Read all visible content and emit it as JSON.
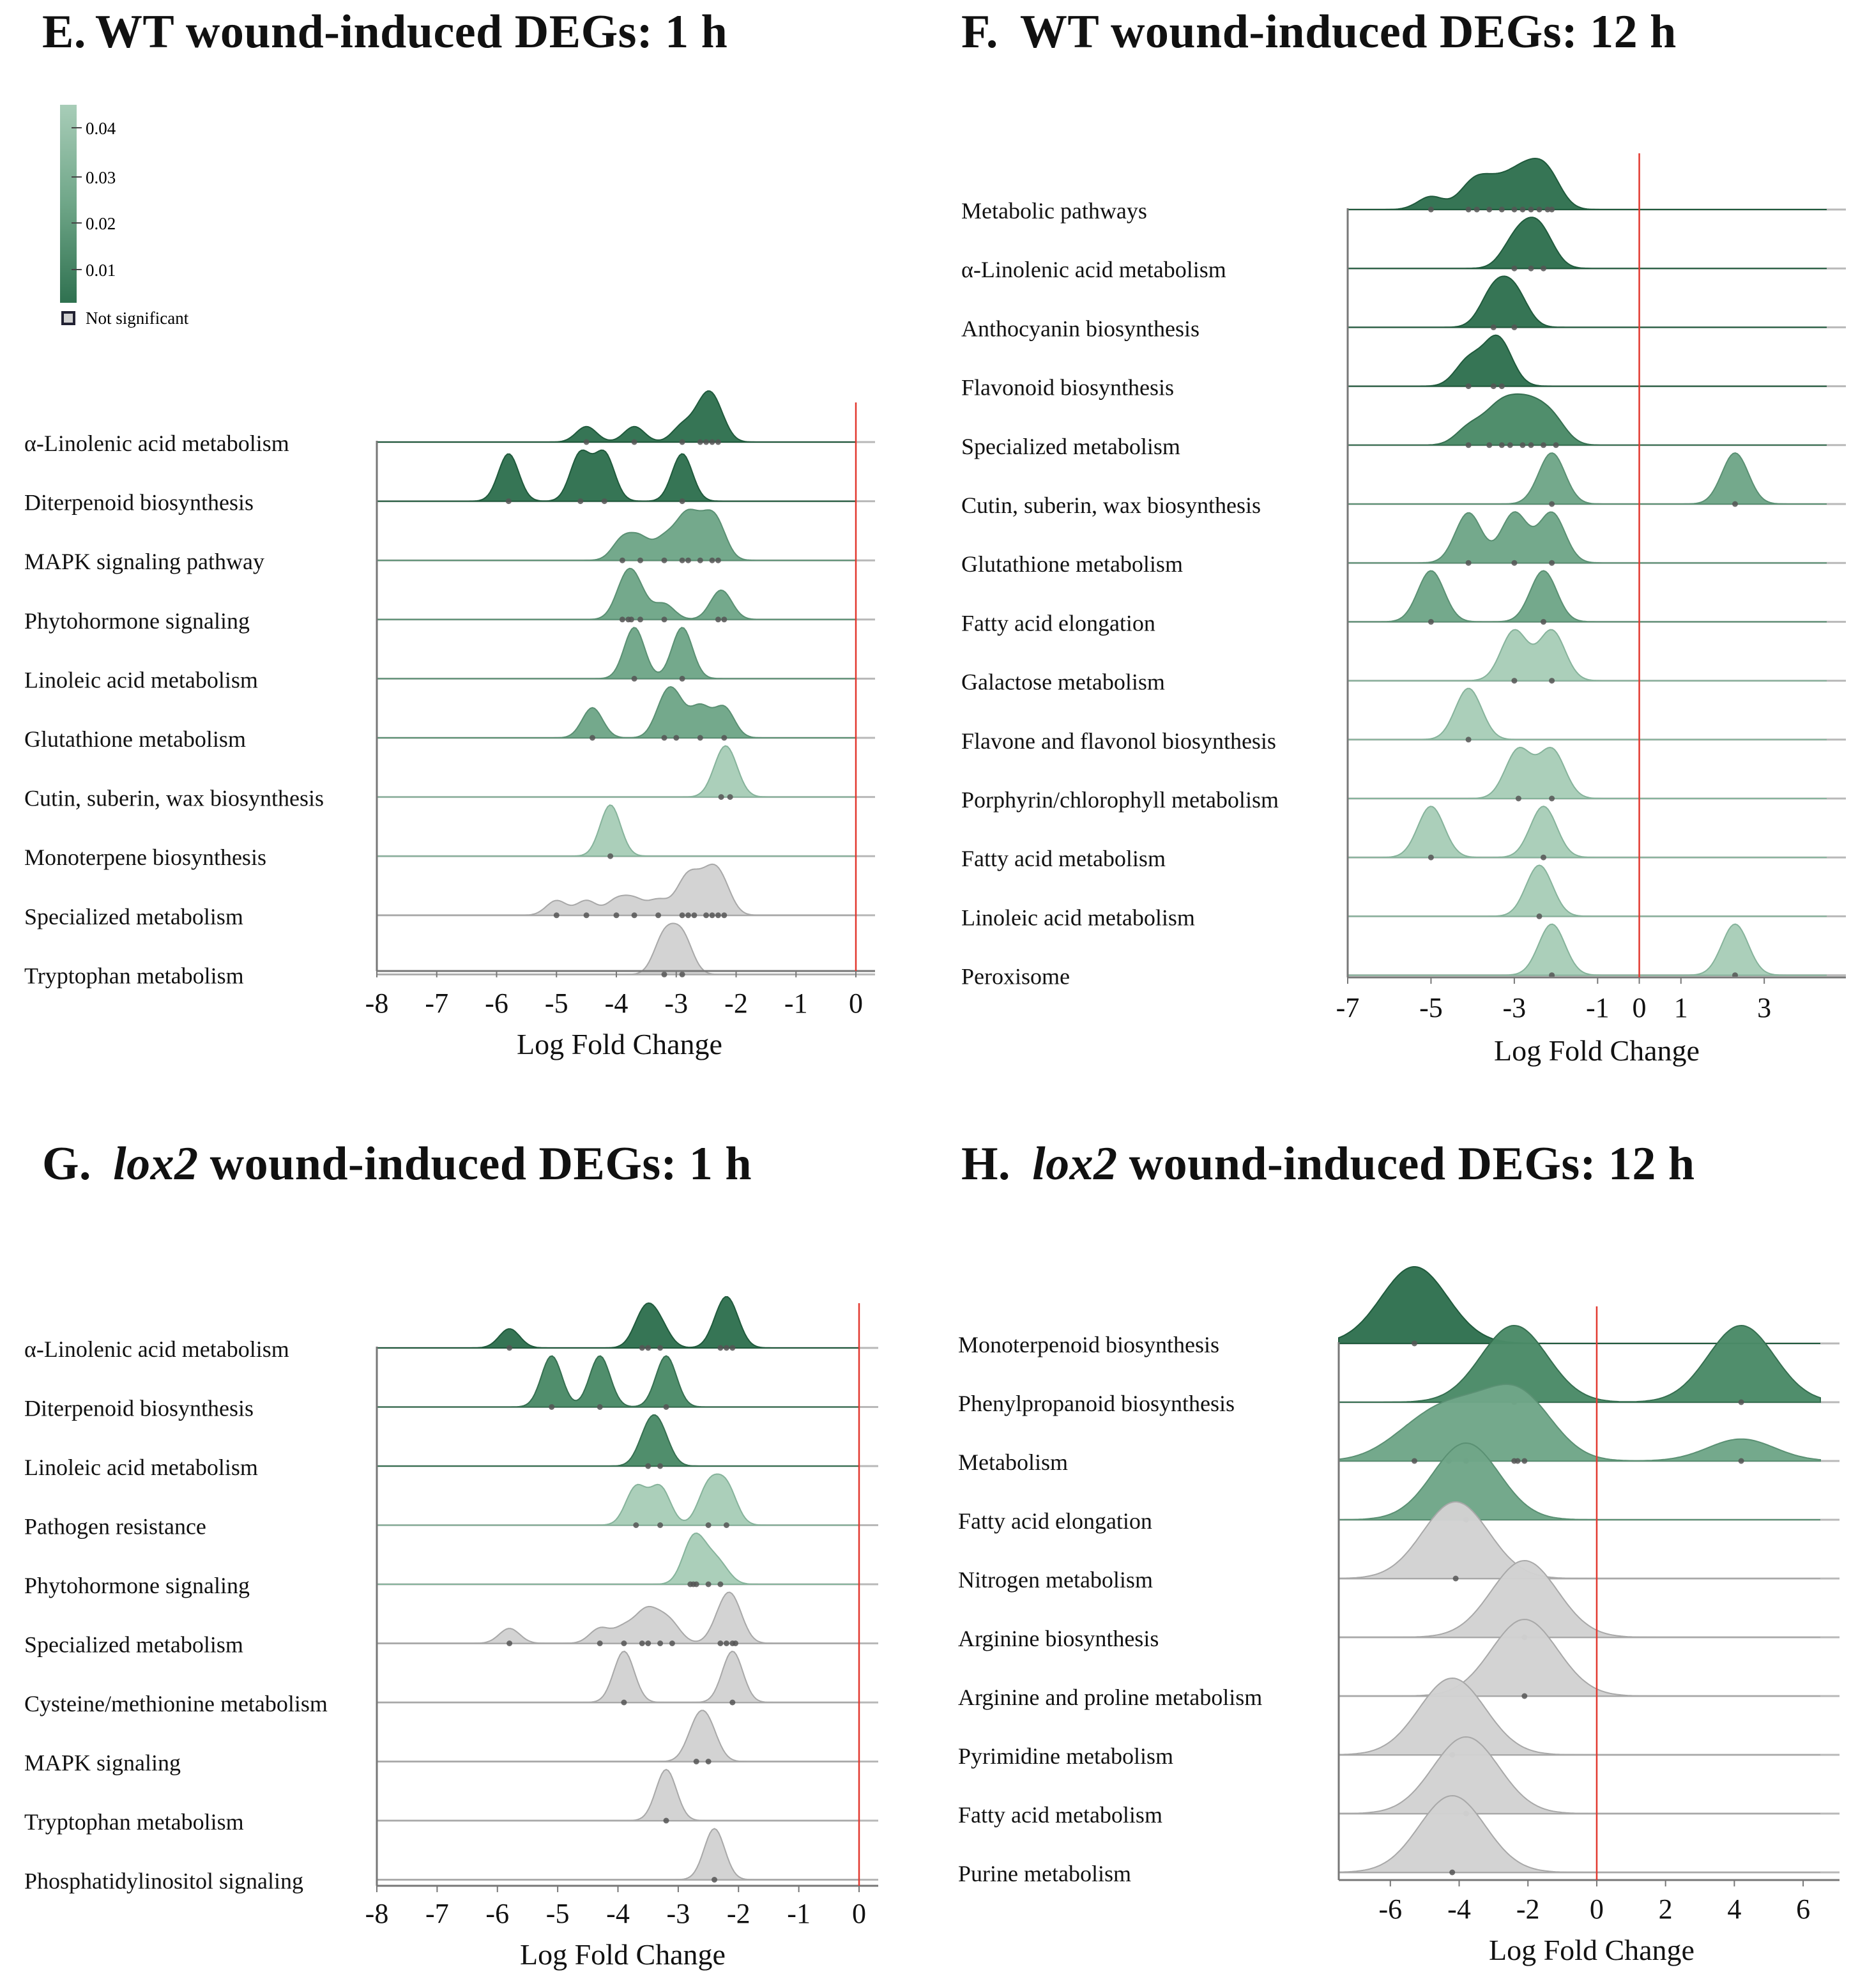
{
  "colors": {
    "q001": "#2f7150",
    "q002": "#4a8a67",
    "q003": "#6fa688",
    "q004": "#a8cdb8",
    "ns": "#d2d2d2",
    "axis": "#9a9a9a",
    "zero_line": "#e2382f",
    "dot": "#555555"
  },
  "legend": {
    "ticks": [
      "0.04",
      "0.03",
      "0.02",
      "0.01"
    ],
    "ns_label": "Not significant"
  },
  "chart_data": [
    {
      "panel": "E",
      "type": "ridgeline",
      "label": "E.",
      "title_italic": "",
      "title_rest": "WT wound-induced DEGs: 1 h",
      "xlabel": "Log Fold Change",
      "xlim": [
        -8,
        0
      ],
      "xticks": [
        -8,
        -7,
        -6,
        -5,
        -4,
        -3,
        -2,
        -1,
        0
      ],
      "xtick_labels": [
        "-8",
        "-7",
        "-6",
        "-5",
        "-4",
        "-3",
        "-2",
        "-1",
        "0"
      ],
      "zero_line": 0,
      "series": [
        {
          "name": "α-Linolenic acid metabolism",
          "color": "q001",
          "points": [
            -4.5,
            -3.7,
            -2.9,
            -2.6,
            -2.5,
            -2.4,
            -2.3
          ]
        },
        {
          "name": "Diterpenoid biosynthesis",
          "color": "q001",
          "points": [
            -5.8,
            -4.6,
            -4.2,
            -2.9
          ]
        },
        {
          "name": "MAPK signaling pathway",
          "color": "q003",
          "points": [
            -3.9,
            -3.6,
            -3.2,
            -2.9,
            -2.8,
            -2.6,
            -2.4,
            -2.3
          ]
        },
        {
          "name": "Phytohormone signaling",
          "color": "q003",
          "points": [
            -3.9,
            -3.8,
            -3.75,
            -3.6,
            -3.2,
            -2.3,
            -2.2
          ]
        },
        {
          "name": "Linoleic acid metabolism",
          "color": "q003",
          "points": [
            -3.7,
            -2.9
          ]
        },
        {
          "name": "Glutathione metabolism",
          "color": "q003",
          "points": [
            -4.4,
            -3.2,
            -3.0,
            -2.6,
            -2.2
          ]
        },
        {
          "name": "Cutin, suberin, wax biosynthesis",
          "color": "q004",
          "points": [
            -2.25,
            -2.1
          ]
        },
        {
          "name": "Monoterpene biosynthesis",
          "color": "q004",
          "points": [
            -4.1
          ]
        },
        {
          "name": "Specialized metabolism",
          "color": "ns",
          "points": [
            -5.0,
            -4.5,
            -4.0,
            -3.7,
            -3.3,
            -2.9,
            -2.8,
            -2.7,
            -2.5,
            -2.4,
            -2.3,
            -2.2
          ]
        },
        {
          "name": "Tryptophan metabolism",
          "color": "ns",
          "points": [
            -3.2,
            -2.9
          ]
        }
      ]
    },
    {
      "panel": "F",
      "type": "ridgeline",
      "label": "F.",
      "title_italic": "",
      "title_rest": "WT wound-induced DEGs: 12 h",
      "xlabel": "Log Fold Change",
      "xlim": [
        -7,
        4.5
      ],
      "xticks": [
        -7,
        -5,
        -3,
        -1,
        0,
        1,
        3
      ],
      "xtick_labels": [
        "-7",
        "-5",
        "-3",
        "-1",
        "0",
        "1",
        "3"
      ],
      "zero_line": 0,
      "series": [
        {
          "name": "Metabolic pathways",
          "color": "q001",
          "points": [
            -5.0,
            -4.1,
            -3.9,
            -3.6,
            -3.3,
            -3.0,
            -2.8,
            -2.6,
            -2.4,
            -2.2,
            -2.1
          ]
        },
        {
          "name": "α-Linolenic acid metabolism",
          "color": "q001",
          "points": [
            -3.0,
            -2.6,
            -2.3
          ]
        },
        {
          "name": "Anthocyanin biosynthesis",
          "color": "q001",
          "points": [
            -3.5,
            -3.0
          ]
        },
        {
          "name": "Flavonoid biosynthesis",
          "color": "q001",
          "points": [
            -4.1,
            -3.5,
            -3.3
          ]
        },
        {
          "name": "Specialized metabolism",
          "color": "q002",
          "points": [
            -4.1,
            -3.6,
            -3.3,
            -3.1,
            -2.8,
            -2.6,
            -2.3,
            -2.0
          ]
        },
        {
          "name": "Cutin, suberin, wax biosynthesis",
          "color": "q003",
          "points": [
            -2.1,
            2.3
          ]
        },
        {
          "name": "Glutathione metabolism",
          "color": "q003",
          "points": [
            -4.1,
            -3.0,
            -2.1
          ]
        },
        {
          "name": "Fatty acid elongation",
          "color": "q003",
          "points": [
            -5.0,
            -2.3
          ]
        },
        {
          "name": "Galactose metabolism",
          "color": "q004",
          "points": [
            -3.0,
            -2.1
          ]
        },
        {
          "name": "Flavone and flavonol biosynthesis",
          "color": "q004",
          "points": [
            -4.1
          ]
        },
        {
          "name": "Porphyrin/chlorophyll metabolism",
          "color": "q004",
          "points": [
            -2.9,
            -2.1
          ]
        },
        {
          "name": "Fatty acid metabolism",
          "color": "q004",
          "points": [
            -5.0,
            -2.3
          ]
        },
        {
          "name": "Linoleic acid metabolism",
          "color": "q004",
          "points": [
            -2.4
          ]
        },
        {
          "name": "Peroxisome",
          "color": "q004",
          "points": [
            -2.1,
            2.3
          ]
        }
      ]
    },
    {
      "panel": "G",
      "type": "ridgeline",
      "label": "G.",
      "title_italic": "lox2",
      "title_rest": "wound-induced DEGs: 1 h",
      "xlabel": "Log Fold Change",
      "xlim": [
        -8,
        0
      ],
      "xticks": [
        -8,
        -7,
        -6,
        -5,
        -4,
        -3,
        -2,
        -1,
        0
      ],
      "xtick_labels": [
        "-8",
        "-7",
        "-6",
        "-5",
        "-4",
        "-3",
        "-2",
        "-1",
        "0"
      ],
      "zero_line": 0,
      "series": [
        {
          "name": "α-Linolenic acid metabolism",
          "color": "q001",
          "points": [
            -5.8,
            -3.6,
            -3.5,
            -3.3,
            -2.3,
            -2.2,
            -2.1
          ]
        },
        {
          "name": "Diterpenoid biosynthesis",
          "color": "q002",
          "points": [
            -5.1,
            -4.3,
            -3.2
          ]
        },
        {
          "name": "Linoleic acid metabolism",
          "color": "q002",
          "points": [
            -3.5,
            -3.3
          ]
        },
        {
          "name": "Pathogen resistance",
          "color": "q004",
          "points": [
            -3.7,
            -3.3,
            -2.5,
            -2.2
          ]
        },
        {
          "name": "Phytohormone signaling",
          "color": "q004",
          "points": [
            -2.8,
            -2.75,
            -2.7,
            -2.5,
            -2.3
          ]
        },
        {
          "name": "Specialized metabolism",
          "color": "ns",
          "points": [
            -5.8,
            -4.3,
            -3.9,
            -3.6,
            -3.5,
            -3.3,
            -3.1,
            -2.3,
            -2.2,
            -2.1,
            -2.05
          ]
        },
        {
          "name": "Cysteine/methionine metabolism",
          "color": "ns",
          "points": [
            -3.9,
            -2.1
          ]
        },
        {
          "name": "MAPK signaling",
          "color": "ns",
          "points": [
            -2.7,
            -2.5
          ]
        },
        {
          "name": "Tryptophan metabolism",
          "color": "ns",
          "points": [
            -3.2
          ]
        },
        {
          "name": "Phosphatidylinositol signaling",
          "color": "ns",
          "points": [
            -2.4
          ]
        }
      ]
    },
    {
      "panel": "H",
      "type": "ridgeline",
      "label": "H.",
      "title_italic": "lox2",
      "title_rest": "wound-induced DEGs: 12 h",
      "xlabel": "Log Fold Change",
      "xlim": [
        -7.5,
        6.5
      ],
      "xticks": [
        -6,
        -4,
        -2,
        0,
        2,
        4,
        6
      ],
      "xtick_labels": [
        "-6",
        "-4",
        "-2",
        "0",
        "2",
        "4",
        "6"
      ],
      "zero_line": 0,
      "series": [
        {
          "name": "Monoterpenoid biosynthesis",
          "color": "q001",
          "points": [
            -5.3
          ]
        },
        {
          "name": "Phenylpropanoid biosynthesis",
          "color": "q002",
          "points": [
            -2.4,
            4.2
          ]
        },
        {
          "name": "Metabolism",
          "color": "q003",
          "points": [
            -5.3,
            -4.3,
            -3.8,
            -2.4,
            -2.3,
            -2.1,
            4.2
          ]
        },
        {
          "name": "Fatty acid elongation",
          "color": "q003",
          "points": [
            -3.8
          ]
        },
        {
          "name": "Nitrogen metabolism",
          "color": "ns",
          "points": [
            -4.1
          ]
        },
        {
          "name": "Arginine biosynthesis",
          "color": "ns",
          "points": [
            -2.1
          ]
        },
        {
          "name": "Arginine and proline metabolism",
          "color": "ns",
          "points": [
            -2.1
          ]
        },
        {
          "name": "Pyrimidine metabolism",
          "color": "ns",
          "points": [
            -4.2
          ]
        },
        {
          "name": "Fatty acid metabolism",
          "color": "ns",
          "points": [
            -3.8
          ]
        },
        {
          "name": "Purine metabolism",
          "color": "ns",
          "points": [
            -4.2
          ]
        }
      ]
    }
  ]
}
